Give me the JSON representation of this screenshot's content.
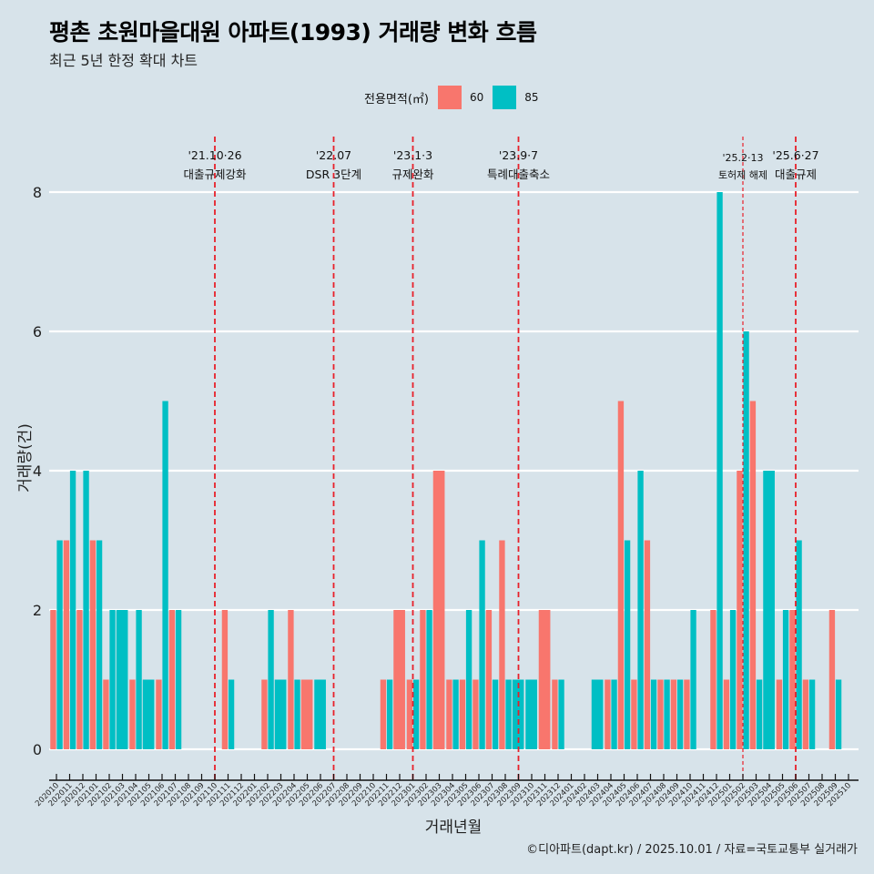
{
  "header": {
    "title": "평촌 초원마을대원 아파트(1993) 거래량 변화 흐름",
    "subtitle": "최근 5년 한정 확대 차트"
  },
  "legend": {
    "title": "전용면적(㎡)",
    "items": [
      {
        "label": "60",
        "color": "#f8766d"
      },
      {
        "label": "85",
        "color": "#00bfc4"
      }
    ]
  },
  "footer": {
    "credit": "©디아파트(dapt.kr) / 2025.10.01 / 자료=국토교통부 실거래가"
  },
  "colors": {
    "background": "#d7e3ea",
    "grid": "#ffffff",
    "event_line": "#e8202a",
    "series_60": "#f8766d",
    "series_85": "#00bfc4"
  },
  "chart_data": {
    "type": "bar",
    "title": "평촌 초원마을대원 아파트(1993) 거래량 변화 흐름",
    "subtitle": "최근 5년 한정 확대 차트",
    "xlabel": "거래년월",
    "ylabel": "거래량(건)",
    "ylim": [
      0,
      8
    ],
    "yticks": [
      0,
      2,
      4,
      6,
      8
    ],
    "grid": true,
    "legend_position": "top",
    "categories": [
      "202010",
      "202011",
      "202012",
      "202101",
      "202102",
      "202103",
      "202104",
      "202105",
      "202106",
      "202107",
      "202108",
      "202109",
      "202110",
      "202111",
      "202112",
      "202201",
      "202202",
      "202203",
      "202204",
      "202205",
      "202206",
      "202207",
      "202208",
      "202209",
      "202210",
      "202211",
      "202212",
      "202301",
      "202302",
      "202303",
      "202304",
      "202305",
      "202306",
      "202307",
      "202308",
      "202309",
      "202310",
      "202311",
      "202312",
      "202401",
      "202402",
      "202403",
      "202404",
      "202405",
      "202406",
      "202407",
      "202408",
      "202409",
      "202410",
      "202411",
      "202412",
      "202501",
      "202502",
      "202503",
      "202504",
      "202505",
      "202506",
      "202507",
      "202508",
      "202509",
      "202510"
    ],
    "series": [
      {
        "name": "60",
        "color": "#f8766d",
        "values": [
          2,
          3,
          2,
          3,
          1,
          0,
          1,
          0,
          1,
          2,
          0,
          0,
          0,
          2,
          0,
          0,
          1,
          0,
          2,
          1,
          0,
          0,
          0,
          0,
          0,
          1,
          2,
          1,
          2,
          4,
          1,
          1,
          1,
          2,
          3,
          0,
          0,
          2,
          1,
          0,
          0,
          0,
          1,
          5,
          1,
          3,
          1,
          1,
          1,
          0,
          2,
          1,
          4,
          5,
          0,
          1,
          2,
          1,
          0,
          2,
          0
        ]
      },
      {
        "name": "85",
        "color": "#00bfc4",
        "values": [
          3,
          4,
          4,
          3,
          2,
          2,
          2,
          1,
          5,
          2,
          0,
          0,
          0,
          1,
          0,
          0,
          2,
          1,
          1,
          0,
          1,
          0,
          0,
          0,
          0,
          1,
          0,
          1,
          2,
          0,
          1,
          2,
          3,
          1,
          1,
          1,
          1,
          0,
          1,
          0,
          0,
          1,
          1,
          3,
          4,
          1,
          1,
          1,
          2,
          0,
          8,
          2,
          6,
          1,
          4,
          2,
          3,
          1,
          0,
          1,
          0
        ]
      }
    ],
    "annotations": [
      {
        "at": "202110",
        "date": "'21.10·26",
        "label": "대출규제강화",
        "style": "dashed"
      },
      {
        "at": "202207",
        "date": "'22.07",
        "label": "DSR 3단계",
        "style": "dashed"
      },
      {
        "at": "202301",
        "date": "'23.1·3",
        "label": "규제완화",
        "style": "dashed"
      },
      {
        "at": "202309",
        "date": "'23.9·7",
        "label": "특례대출축소",
        "style": "dashed"
      },
      {
        "at": "202502",
        "date": "'25.2·13",
        "label": "토허제 해제",
        "style": "thin-dashed"
      },
      {
        "at": "202506",
        "date": "'25.6·27",
        "label": "대출규제",
        "style": "dashed"
      }
    ]
  }
}
